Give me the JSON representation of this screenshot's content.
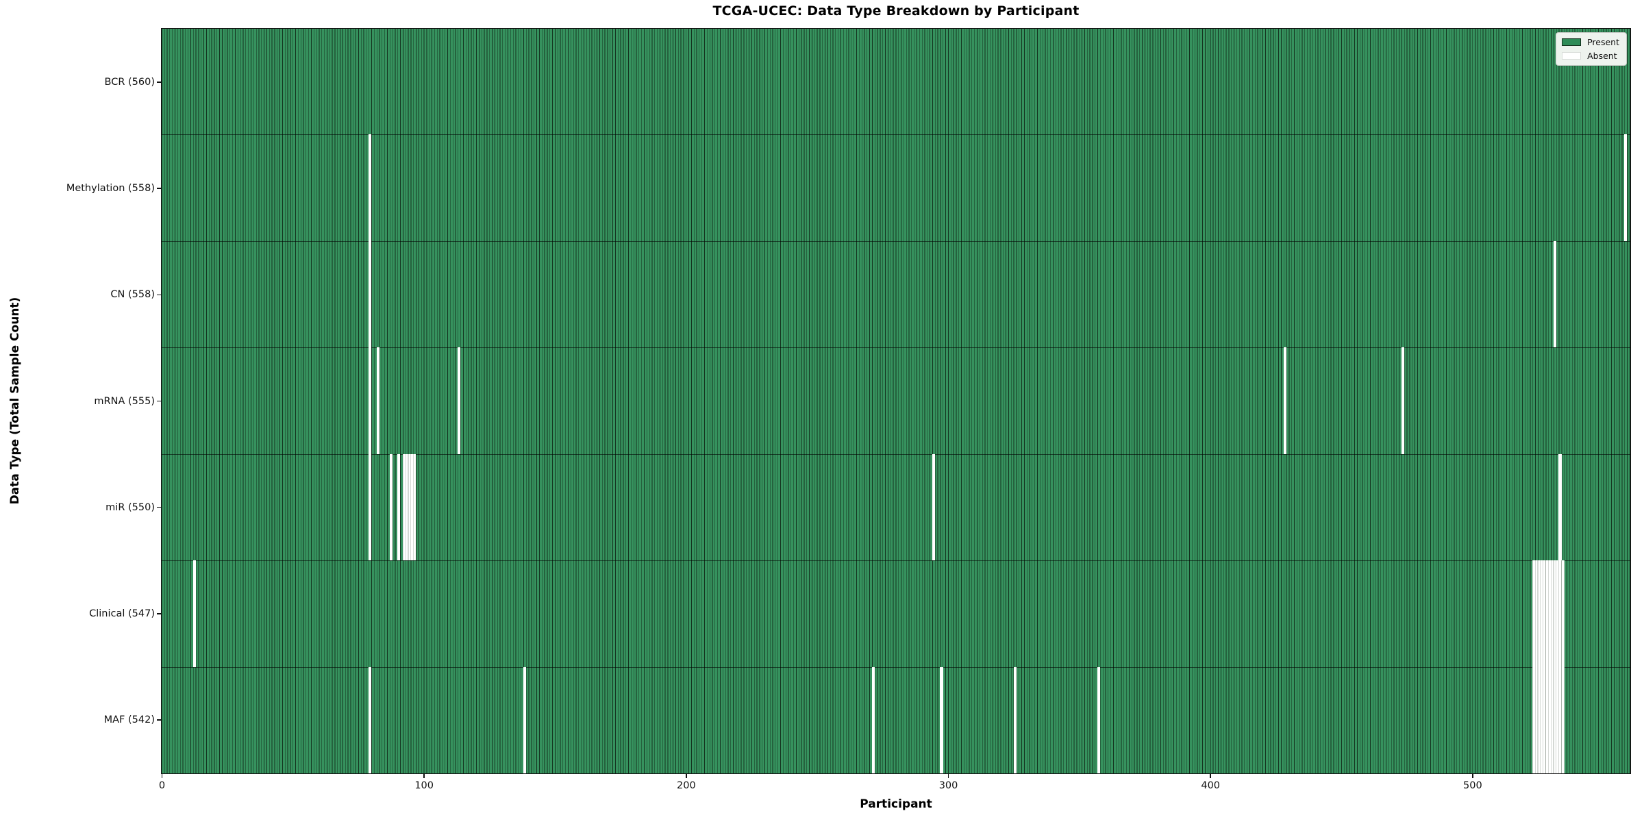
{
  "chart_data": {
    "type": "heatmap",
    "title": "TCGA-UCEC: Data Type Breakdown by Participant",
    "xlabel": "Participant",
    "ylabel": "Data Type (Total Sample Count)",
    "legend_labels": [
      "Present",
      "Absent"
    ],
    "legend_position": "upper right",
    "x_range": [
      0,
      560
    ],
    "x_ticks": [
      0,
      100,
      200,
      300,
      400,
      500
    ],
    "total_participants": 560,
    "colors": {
      "present_fill": "#36925E",
      "present_edge": "#14331F",
      "legend_present_swatch": "#2E8B57",
      "absent_fill": "#FFFFFF",
      "row_divider": "#1A1A1A",
      "axis_spine": "#111111",
      "background": "#FFFFFF"
    },
    "rows": [
      {
        "name": "BCR",
        "label": "BCR (560)",
        "present_count": 560,
        "absent_participants": []
      },
      {
        "name": "Methylation",
        "label": "Methylation (558)",
        "present_count": 558,
        "absent_participants": [
          79,
          558
        ]
      },
      {
        "name": "CN",
        "label": "CN (558)",
        "present_count": 558,
        "absent_participants": [
          79,
          531
        ]
      },
      {
        "name": "mRNA",
        "label": "mRNA (555)",
        "present_count": 555,
        "absent_participants": [
          79,
          82,
          113,
          428,
          473
        ]
      },
      {
        "name": "miR",
        "label": "miR (550)",
        "present_count": 550,
        "absent_participants": [
          79,
          87,
          90,
          92,
          93,
          94,
          95,
          96,
          294,
          533
        ]
      },
      {
        "name": "Clinical",
        "label": "Clinical (547)",
        "present_count": 547,
        "absent_participants": [
          12,
          523,
          524,
          525,
          526,
          527,
          528,
          529,
          530,
          531,
          532,
          533,
          534
        ]
      },
      {
        "name": "MAF",
        "label": "MAF (542)",
        "present_count": 542,
        "absent_participants": [
          79,
          138,
          271,
          297,
          325,
          357,
          523,
          524,
          525,
          526,
          527,
          528,
          529,
          530,
          531,
          532,
          533,
          534
        ]
      }
    ]
  }
}
